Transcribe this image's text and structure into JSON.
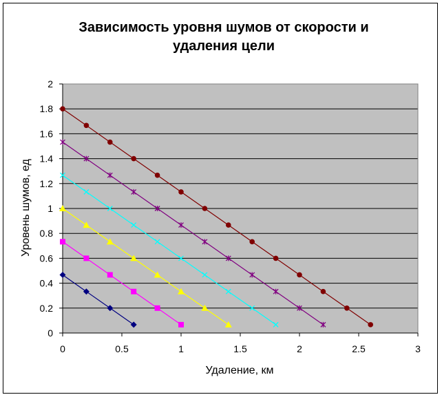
{
  "chart_data": {
    "type": "line",
    "title_lines": [
      "Зависимость уровня шумов от скорости и",
      "удаления цели"
    ],
    "xlabel": "Удаление, км",
    "ylabel": "Уровень шумов, ед",
    "xlim": [
      0,
      3
    ],
    "ylim": [
      0,
      2
    ],
    "x_ticks": [
      "0",
      "0.5",
      "1",
      "1.5",
      "2",
      "2.5",
      "3"
    ],
    "y_ticks": [
      "0",
      "0.2",
      "0.4",
      "0.6",
      "0.8",
      "1",
      "1.2",
      "1.4",
      "1.6",
      "1.8",
      "2"
    ],
    "grid": true,
    "plot_background": "#c0c0c0",
    "series": [
      {
        "color": "#000080",
        "marker": "diamond",
        "x": [
          0,
          0.2,
          0.4,
          0.6
        ],
        "y": [
          0.467,
          0.333,
          0.2,
          0.067
        ]
      },
      {
        "color": "#ff00ff",
        "marker": "square",
        "x": [
          0,
          0.2,
          0.4,
          0.6,
          0.8,
          1.0
        ],
        "y": [
          0.733,
          0.6,
          0.467,
          0.333,
          0.2,
          0.067
        ]
      },
      {
        "color": "#ffff00",
        "marker": "triangle",
        "x": [
          0,
          0.2,
          0.4,
          0.6,
          0.8,
          1.0,
          1.2,
          1.4
        ],
        "y": [
          1.0,
          0.867,
          0.733,
          0.6,
          0.467,
          0.333,
          0.2,
          0.067
        ]
      },
      {
        "color": "#00ffff",
        "marker": "x",
        "x": [
          0,
          0.2,
          0.4,
          0.6,
          0.8,
          1.0,
          1.2,
          1.4,
          1.6,
          1.8
        ],
        "y": [
          1.267,
          1.133,
          1.0,
          0.867,
          0.733,
          0.6,
          0.467,
          0.333,
          0.2,
          0.067
        ]
      },
      {
        "color": "#800080",
        "marker": "star",
        "x": [
          0,
          0.2,
          0.4,
          0.6,
          0.8,
          1.0,
          1.2,
          1.4,
          1.6,
          1.8,
          2.0,
          2.2
        ],
        "y": [
          1.533,
          1.4,
          1.267,
          1.133,
          1.0,
          0.867,
          0.733,
          0.6,
          0.467,
          0.333,
          0.2,
          0.067
        ]
      },
      {
        "color": "#800000",
        "marker": "circle",
        "x": [
          0,
          0.2,
          0.4,
          0.6,
          0.8,
          1.0,
          1.2,
          1.4,
          1.6,
          1.8,
          2.0,
          2.2,
          2.4,
          2.6
        ],
        "y": [
          1.8,
          1.667,
          1.533,
          1.4,
          1.267,
          1.133,
          1.0,
          0.867,
          0.733,
          0.6,
          0.467,
          0.333,
          0.2,
          0.067
        ]
      }
    ]
  }
}
